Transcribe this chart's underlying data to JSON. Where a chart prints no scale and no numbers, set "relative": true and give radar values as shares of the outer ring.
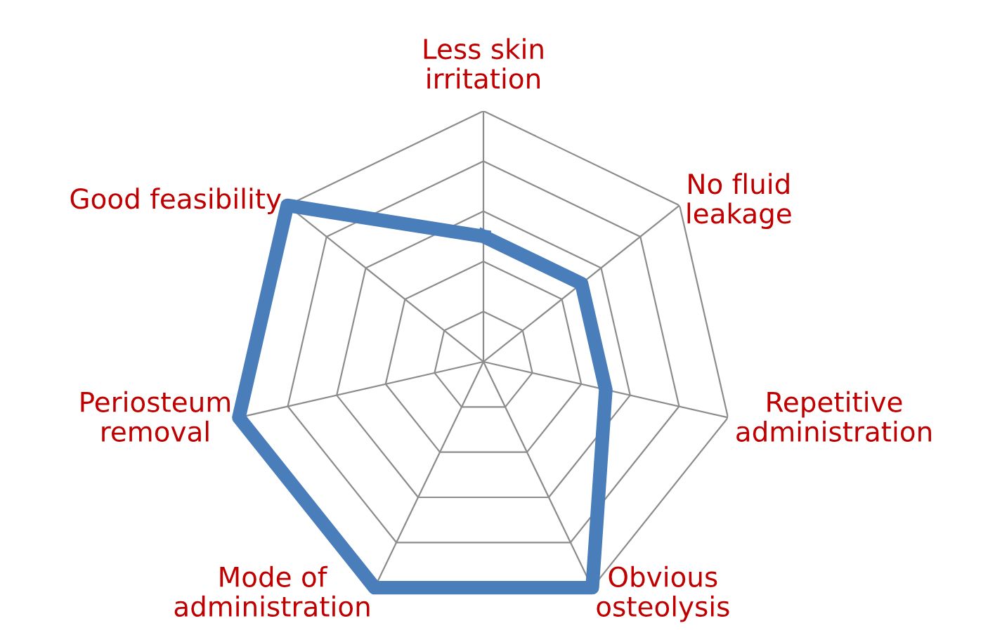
{
  "chart_data": {
    "type": "radar",
    "relative": true,
    "categories": [
      "Less skin\nirritation",
      "No fluid\nleakage",
      "Repetitive\nadministration",
      "Obvious\nosteolysis",
      "Mode of\nadministration",
      "Periosteum\nremoval",
      "Good feasibility"
    ],
    "series": [
      {
        "color": "#4a7ebb",
        "values": [
          0.5,
          0.5,
          0.5,
          1.0,
          1.0,
          1.0,
          1.0
        ]
      }
    ],
    "grid": true,
    "line_style": "solid"
  }
}
